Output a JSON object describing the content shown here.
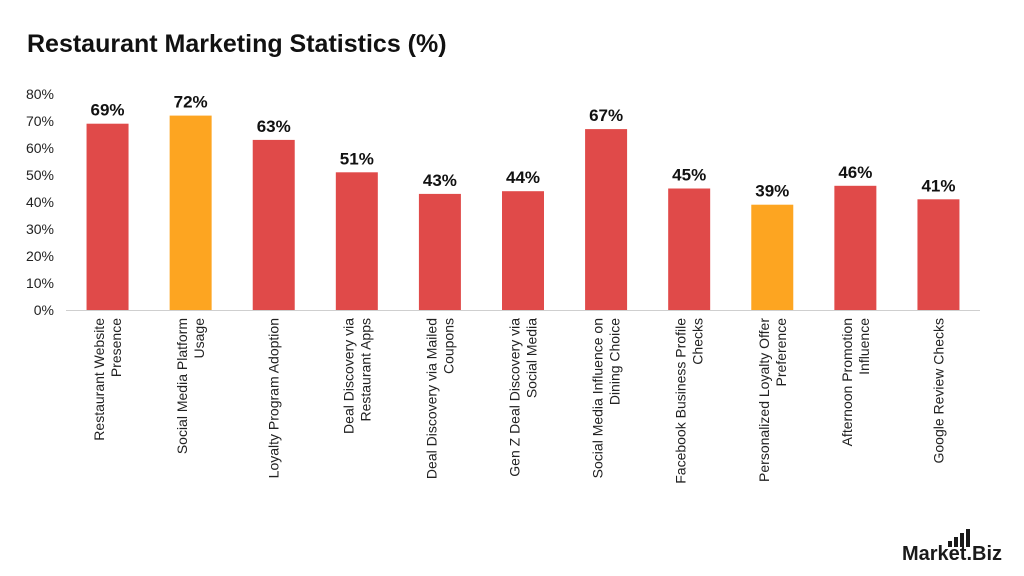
{
  "chart_data": {
    "type": "bar",
    "title": "Restaurant Marketing Statistics (%)",
    "xlabel": "",
    "ylabel": "",
    "ylim": [
      0,
      80
    ],
    "yticks": [
      "0%",
      "10%",
      "20%",
      "30%",
      "40%",
      "50%",
      "60%",
      "70%",
      "80%"
    ],
    "grid": false,
    "legend": "none",
    "categories": [
      [
        "Restaurant Website",
        "Presence"
      ],
      [
        "Social Media Platform",
        "Usage"
      ],
      [
        "Loyalty Program Adoption"
      ],
      [
        "Deal Discovery via",
        "Restaurant Apps"
      ],
      [
        "Deal Discovery via Mailed",
        "Coupons"
      ],
      [
        "Gen Z Deal Discovery via",
        "Social Media"
      ],
      [
        "Social Media Influence on",
        "Dining Choice"
      ],
      [
        "Facebook Business Profile",
        "Checks"
      ],
      [
        "Personalized Loyalty Offer",
        "Preference"
      ],
      [
        "Afternoon Promotion",
        "Influence"
      ],
      [
        "Google Review Checks"
      ]
    ],
    "values": [
      69,
      72,
      63,
      51,
      43,
      44,
      67,
      45,
      39,
      46,
      41
    ],
    "value_labels": [
      "69%",
      "72%",
      "63%",
      "51%",
      "43%",
      "44%",
      "67%",
      "45%",
      "39%",
      "46%",
      "41%"
    ],
    "bar_colors": [
      "#e04a49",
      "#fda521",
      "#e04a49",
      "#e04a49",
      "#e04a49",
      "#e04a49",
      "#e04a49",
      "#e04a49",
      "#fda521",
      "#e04a49",
      "#e04a49"
    ]
  },
  "brand": {
    "logo_text": "Market.Biz",
    "logo_icon": "bar-chart-icon"
  },
  "colors": {
    "primary_bar": "#e04a49",
    "highlight_bar": "#fda521",
    "axis": "#cfcfcf",
    "text": "#111111"
  }
}
